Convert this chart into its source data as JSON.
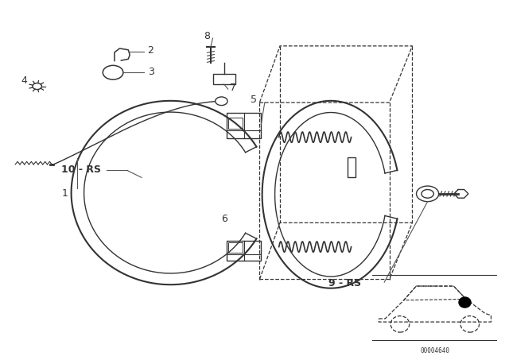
{
  "title": "",
  "bg_color": "#ffffff",
  "fig_width": 6.4,
  "fig_height": 4.48,
  "dpi": 100,
  "line_color": "#333333",
  "label_fontsize": 9,
  "code": "00004640"
}
